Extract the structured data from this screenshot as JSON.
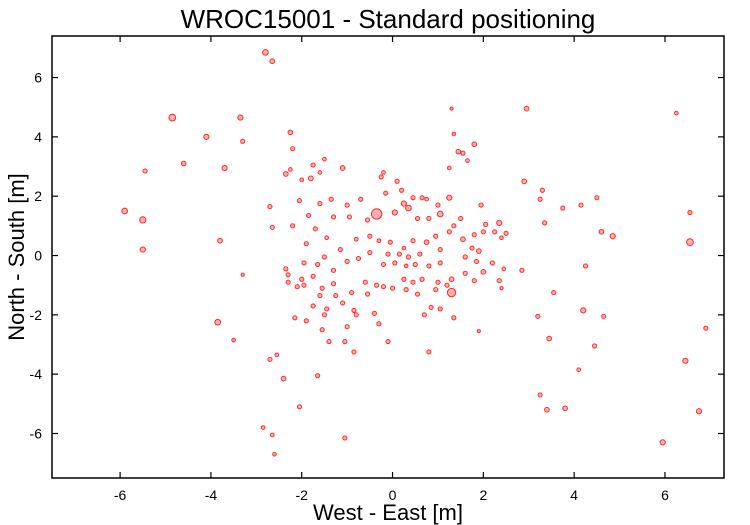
{
  "chart_data": {
    "type": "scatter",
    "title": "WROC15001 - Standard positioning",
    "xlabel": "West - East [m]",
    "ylabel": "North - South [m]",
    "xlim": [
      -7.5,
      7.3
    ],
    "ylim": [
      -7.5,
      7.4
    ],
    "xticks": [
      -6,
      -4,
      -2,
      0,
      2,
      4,
      6
    ],
    "yticks": [
      -6,
      -4,
      -2,
      0,
      2,
      4,
      6
    ],
    "grid": false,
    "marker_color": "#ff2a2a",
    "marker_fill": "#ffb0b0",
    "points": [
      {
        "x": -2.8,
        "y": 6.85,
        "s": 1.1
      },
      {
        "x": -2.65,
        "y": 6.55,
        "s": 0.9
      },
      {
        "x": -4.85,
        "y": 4.65,
        "s": 1.3
      },
      {
        "x": -3.35,
        "y": 4.65,
        "s": 1.0
      },
      {
        "x": -4.1,
        "y": 4.0,
        "s": 1.0
      },
      {
        "x": -3.3,
        "y": 3.85,
        "s": 0.8
      },
      {
        "x": -2.25,
        "y": 4.15,
        "s": 0.9
      },
      {
        "x": -2.2,
        "y": 3.6,
        "s": 0.8
      },
      {
        "x": -4.6,
        "y": 3.1,
        "s": 0.9
      },
      {
        "x": -3.7,
        "y": 2.95,
        "s": 1.0
      },
      {
        "x": -5.45,
        "y": 2.85,
        "s": 0.8
      },
      {
        "x": -5.9,
        "y": 1.5,
        "s": 1.1
      },
      {
        "x": -5.5,
        "y": 1.2,
        "s": 1.2
      },
      {
        "x": -5.5,
        "y": 0.2,
        "s": 1.0
      },
      {
        "x": -3.8,
        "y": 0.5,
        "s": 0.9
      },
      {
        "x": -3.3,
        "y": -0.65,
        "s": 0.6
      },
      {
        "x": -3.85,
        "y": -2.25,
        "s": 1.1
      },
      {
        "x": -3.5,
        "y": -2.85,
        "s": 0.7
      },
      {
        "x": -2.7,
        "y": -3.5,
        "s": 0.8
      },
      {
        "x": -2.55,
        "y": -3.35,
        "s": 0.7
      },
      {
        "x": -2.4,
        "y": -4.15,
        "s": 0.9
      },
      {
        "x": -2.05,
        "y": -5.1,
        "s": 0.8
      },
      {
        "x": -2.85,
        "y": -5.8,
        "s": 0.7
      },
      {
        "x": -2.65,
        "y": -6.05,
        "s": 0.7
      },
      {
        "x": -2.6,
        "y": -6.7,
        "s": 0.7
      },
      {
        "x": -1.05,
        "y": -6.15,
        "s": 0.8
      },
      {
        "x": -1.65,
        "y": -4.05,
        "s": 0.8
      },
      {
        "x": -2.35,
        "y": 2.75,
        "s": 0.9
      },
      {
        "x": -2.25,
        "y": 2.9,
        "s": 0.7
      },
      {
        "x": -1.75,
        "y": 3.05,
        "s": 0.8
      },
      {
        "x": -1.5,
        "y": 3.25,
        "s": 0.7
      },
      {
        "x": -1.6,
        "y": 2.8,
        "s": 0.7
      },
      {
        "x": -1.1,
        "y": 2.95,
        "s": 0.9
      },
      {
        "x": -1.8,
        "y": 2.6,
        "s": 0.9
      },
      {
        "x": -2.0,
        "y": 2.55,
        "s": 0.7
      },
      {
        "x": -2.7,
        "y": 1.65,
        "s": 0.8
      },
      {
        "x": -2.05,
        "y": 1.85,
        "s": 0.8
      },
      {
        "x": -1.6,
        "y": 1.75,
        "s": 0.8
      },
      {
        "x": -1.35,
        "y": 1.9,
        "s": 0.8
      },
      {
        "x": -1.0,
        "y": 1.7,
        "s": 0.8
      },
      {
        "x": -0.7,
        "y": 1.9,
        "s": 0.8
      },
      {
        "x": -1.85,
        "y": 1.35,
        "s": 0.8
      },
      {
        "x": -2.2,
        "y": 1.0,
        "s": 0.8
      },
      {
        "x": -1.7,
        "y": 0.9,
        "s": 0.8
      },
      {
        "x": -1.3,
        "y": 1.3,
        "s": 0.8
      },
      {
        "x": -0.95,
        "y": 1.3,
        "s": 0.8
      },
      {
        "x": -0.55,
        "y": 1.2,
        "s": 0.8
      },
      {
        "x": -2.65,
        "y": 0.95,
        "s": 0.8
      },
      {
        "x": -1.45,
        "y": 0.6,
        "s": 0.7
      },
      {
        "x": -1.15,
        "y": 0.2,
        "s": 0.8
      },
      {
        "x": -0.8,
        "y": 0.55,
        "s": 0.7
      },
      {
        "x": -0.5,
        "y": 0.65,
        "s": 0.8
      },
      {
        "x": -0.35,
        "y": 1.4,
        "s": 2.0
      },
      {
        "x": -0.25,
        "y": 2.65,
        "s": 0.8
      },
      {
        "x": -0.2,
        "y": 2.8,
        "s": 0.7
      },
      {
        "x": -0.15,
        "y": 2.1,
        "s": 0.8
      },
      {
        "x": 0.1,
        "y": 2.5,
        "s": 0.8
      },
      {
        "x": 0.2,
        "y": 2.2,
        "s": 0.8
      },
      {
        "x": 0.25,
        "y": 1.75,
        "s": 1.0
      },
      {
        "x": 0.05,
        "y": 1.45,
        "s": 1.0
      },
      {
        "x": 0.35,
        "y": 1.6,
        "s": 1.1
      },
      {
        "x": 0.45,
        "y": 1.95,
        "s": 0.8
      },
      {
        "x": 0.65,
        "y": 1.95,
        "s": 0.8
      },
      {
        "x": 0.55,
        "y": 1.25,
        "s": 0.8
      },
      {
        "x": 0.8,
        "y": 1.25,
        "s": 0.8
      },
      {
        "x": 0.75,
        "y": 1.9,
        "s": 0.7
      },
      {
        "x": 1.0,
        "y": 1.7,
        "s": 0.8
      },
      {
        "x": -0.3,
        "y": 0.5,
        "s": 0.7
      },
      {
        "x": -0.05,
        "y": 0.45,
        "s": 0.8
      },
      {
        "x": 0.25,
        "y": 0.25,
        "s": 0.7
      },
      {
        "x": 0.45,
        "y": 0.5,
        "s": 0.8
      },
      {
        "x": 0.75,
        "y": 0.45,
        "s": 0.9
      },
      {
        "x": 0.95,
        "y": 0.65,
        "s": 0.8
      },
      {
        "x": 0.6,
        "y": 0.05,
        "s": 0.8
      },
      {
        "x": 0.35,
        "y": -0.05,
        "s": 0.8
      },
      {
        "x": 0.15,
        "y": 0.05,
        "s": 0.8
      },
      {
        "x": -0.1,
        "y": 0.05,
        "s": 0.8
      },
      {
        "x": -0.5,
        "y": 0.1,
        "s": 0.8
      },
      {
        "x": -0.75,
        "y": -0.1,
        "s": 0.8
      },
      {
        "x": -1.0,
        "y": -0.2,
        "s": 0.8
      },
      {
        "x": -0.2,
        "y": -0.3,
        "s": 0.8
      },
      {
        "x": 0.05,
        "y": -0.25,
        "s": 0.8
      },
      {
        "x": 0.3,
        "y": -0.35,
        "s": 0.7
      },
      {
        "x": 0.5,
        "y": -0.3,
        "s": 0.8
      },
      {
        "x": 0.8,
        "y": -0.35,
        "s": 0.8
      },
      {
        "x": 1.05,
        "y": -0.25,
        "s": 0.8
      },
      {
        "x": 1.05,
        "y": 0.2,
        "s": 0.8
      },
      {
        "x": -1.9,
        "y": 0.4,
        "s": 0.8
      },
      {
        "x": -2.35,
        "y": -0.45,
        "s": 0.8
      },
      {
        "x": -2.3,
        "y": -0.65,
        "s": 0.8
      },
      {
        "x": -1.95,
        "y": -0.25,
        "s": 0.8
      },
      {
        "x": -1.65,
        "y": -0.3,
        "s": 0.8
      },
      {
        "x": -1.5,
        "y": -0.05,
        "s": 0.8
      },
      {
        "x": -1.3,
        "y": -0.5,
        "s": 0.8
      },
      {
        "x": -1.75,
        "y": -0.7,
        "s": 0.8
      },
      {
        "x": -2.0,
        "y": -0.8,
        "s": 0.8
      },
      {
        "x": -2.3,
        "y": -0.9,
        "s": 0.8
      },
      {
        "x": -2.1,
        "y": -1.05,
        "s": 0.8
      },
      {
        "x": -1.95,
        "y": -1.0,
        "s": 0.8
      },
      {
        "x": -1.55,
        "y": -1.1,
        "s": 0.8
      },
      {
        "x": -1.3,
        "y": -0.95,
        "s": 0.8
      },
      {
        "x": -1.6,
        "y": -1.35,
        "s": 0.8
      },
      {
        "x": -1.25,
        "y": -1.35,
        "s": 0.8
      },
      {
        "x": -1.75,
        "y": -1.7,
        "s": 0.8
      },
      {
        "x": -1.45,
        "y": -1.8,
        "s": 0.8
      },
      {
        "x": -1.1,
        "y": -1.6,
        "s": 0.8
      },
      {
        "x": -0.9,
        "y": -1.25,
        "s": 0.8
      },
      {
        "x": -0.6,
        "y": -0.9,
        "s": 0.8
      },
      {
        "x": -0.55,
        "y": -1.3,
        "s": 0.8
      },
      {
        "x": -0.35,
        "y": -1.0,
        "s": 0.8
      },
      {
        "x": -0.2,
        "y": -1.05,
        "s": 0.8
      },
      {
        "x": 0.0,
        "y": -1.1,
        "s": 0.8
      },
      {
        "x": 0.25,
        "y": -0.8,
        "s": 0.8
      },
      {
        "x": 0.45,
        "y": -0.9,
        "s": 0.8
      },
      {
        "x": 0.65,
        "y": -0.8,
        "s": 0.8
      },
      {
        "x": 0.3,
        "y": -1.15,
        "s": 0.8
      },
      {
        "x": 0.55,
        "y": -1.3,
        "s": 0.8
      },
      {
        "x": 0.95,
        "y": -1.15,
        "s": 0.8
      },
      {
        "x": 1.0,
        "y": -0.9,
        "s": 0.8
      },
      {
        "x": 1.2,
        "y": -1.0,
        "s": 0.8
      },
      {
        "x": 1.3,
        "y": -1.25,
        "s": 1.6
      },
      {
        "x": 0.85,
        "y": -1.75,
        "s": 0.8
      },
      {
        "x": 0.7,
        "y": -2.0,
        "s": 0.8
      },
      {
        "x": 1.05,
        "y": -1.8,
        "s": 0.8
      },
      {
        "x": -0.85,
        "y": -1.85,
        "s": 0.8
      },
      {
        "x": -0.8,
        "y": -2.0,
        "s": 0.8
      },
      {
        "x": -0.4,
        "y": -1.95,
        "s": 0.8
      },
      {
        "x": -0.3,
        "y": -2.3,
        "s": 0.8
      },
      {
        "x": -1.0,
        "y": -2.4,
        "s": 0.8
      },
      {
        "x": -1.55,
        "y": -2.5,
        "s": 0.8
      },
      {
        "x": -1.4,
        "y": -2.9,
        "s": 0.8
      },
      {
        "x": -1.05,
        "y": -2.9,
        "s": 0.8
      },
      {
        "x": -0.85,
        "y": -3.25,
        "s": 0.8
      },
      {
        "x": -0.1,
        "y": -2.9,
        "s": 0.8
      },
      {
        "x": 0.8,
        "y": -3.25,
        "s": 0.8
      },
      {
        "x": 1.35,
        "y": -2.1,
        "s": 0.8
      },
      {
        "x": -1.9,
        "y": -2.2,
        "s": 0.8
      },
      {
        "x": -2.15,
        "y": -2.1,
        "s": 0.8
      },
      {
        "x": -1.5,
        "y": -2.0,
        "s": 0.8
      },
      {
        "x": 1.3,
        "y": 4.95,
        "s": 0.6
      },
      {
        "x": 1.35,
        "y": 4.1,
        "s": 0.7
      },
      {
        "x": 1.45,
        "y": 3.5,
        "s": 0.9
      },
      {
        "x": 1.55,
        "y": 3.45,
        "s": 0.8
      },
      {
        "x": 1.8,
        "y": 3.75,
        "s": 0.9
      },
      {
        "x": 1.65,
        "y": 3.2,
        "s": 0.7
      },
      {
        "x": 1.25,
        "y": 2.95,
        "s": 0.7
      },
      {
        "x": 1.25,
        "y": 1.95,
        "s": 1.0
      },
      {
        "x": 1.5,
        "y": 1.25,
        "s": 0.8
      },
      {
        "x": 1.35,
        "y": 1.0,
        "s": 0.8
      },
      {
        "x": 1.05,
        "y": 1.4,
        "s": 1.1
      },
      {
        "x": 1.25,
        "y": 0.8,
        "s": 0.8
      },
      {
        "x": 1.55,
        "y": 0.55,
        "s": 0.9
      },
      {
        "x": 1.8,
        "y": 0.7,
        "s": 0.8
      },
      {
        "x": 2.0,
        "y": 0.8,
        "s": 0.8
      },
      {
        "x": 1.95,
        "y": 1.7,
        "s": 0.8
      },
      {
        "x": 2.05,
        "y": 1.05,
        "s": 0.8
      },
      {
        "x": 2.25,
        "y": 0.8,
        "s": 0.8
      },
      {
        "x": 2.35,
        "y": 1.1,
        "s": 1.0
      },
      {
        "x": 2.5,
        "y": 0.75,
        "s": 0.8
      },
      {
        "x": 2.4,
        "y": 0.6,
        "s": 0.7
      },
      {
        "x": 1.75,
        "y": 0.25,
        "s": 0.8
      },
      {
        "x": 1.9,
        "y": 0.15,
        "s": 0.9
      },
      {
        "x": 1.6,
        "y": -0.05,
        "s": 0.8
      },
      {
        "x": 1.85,
        "y": -0.2,
        "s": 0.8
      },
      {
        "x": 2.0,
        "y": -0.55,
        "s": 0.9
      },
      {
        "x": 2.2,
        "y": -0.25,
        "s": 0.8
      },
      {
        "x": 2.45,
        "y": -0.45,
        "s": 0.7
      },
      {
        "x": 2.85,
        "y": -0.5,
        "s": 0.8
      },
      {
        "x": 2.35,
        "y": -0.85,
        "s": 0.8
      },
      {
        "x": 1.6,
        "y": -0.6,
        "s": 0.8
      },
      {
        "x": 1.8,
        "y": -0.85,
        "s": 0.8
      },
      {
        "x": 1.3,
        "y": -0.8,
        "s": 0.9
      },
      {
        "x": 2.4,
        "y": -1.1,
        "s": 0.6
      },
      {
        "x": 1.9,
        "y": -2.55,
        "s": 0.6
      },
      {
        "x": 2.95,
        "y": 4.95,
        "s": 0.9
      },
      {
        "x": 2.9,
        "y": 2.5,
        "s": 0.9
      },
      {
        "x": 3.3,
        "y": 2.2,
        "s": 0.8
      },
      {
        "x": 3.25,
        "y": 1.9,
        "s": 0.8
      },
      {
        "x": 3.35,
        "y": 1.1,
        "s": 0.8
      },
      {
        "x": 3.75,
        "y": 1.6,
        "s": 0.8
      },
      {
        "x": 4.15,
        "y": 1.7,
        "s": 0.8
      },
      {
        "x": 4.5,
        "y": 1.95,
        "s": 0.8
      },
      {
        "x": 4.6,
        "y": 0.8,
        "s": 0.9
      },
      {
        "x": 4.85,
        "y": 0.65,
        "s": 1.0
      },
      {
        "x": 4.25,
        "y": -0.35,
        "s": 0.8
      },
      {
        "x": 3.55,
        "y": -1.25,
        "s": 0.8
      },
      {
        "x": 3.2,
        "y": -2.05,
        "s": 0.8
      },
      {
        "x": 4.2,
        "y": -1.85,
        "s": 1.0
      },
      {
        "x": 4.65,
        "y": -2.05,
        "s": 0.8
      },
      {
        "x": 3.45,
        "y": -2.8,
        "s": 0.9
      },
      {
        "x": 4.45,
        "y": -3.05,
        "s": 0.8
      },
      {
        "x": 4.1,
        "y": -3.85,
        "s": 0.7
      },
      {
        "x": 3.25,
        "y": -4.7,
        "s": 0.8
      },
      {
        "x": 3.4,
        "y": -5.2,
        "s": 0.9
      },
      {
        "x": 3.8,
        "y": -5.15,
        "s": 0.9
      },
      {
        "x": 6.25,
        "y": 4.8,
        "s": 0.7
      },
      {
        "x": 6.55,
        "y": 1.45,
        "s": 0.8
      },
      {
        "x": 6.55,
        "y": 0.45,
        "s": 1.3
      },
      {
        "x": 6.9,
        "y": -2.45,
        "s": 0.8
      },
      {
        "x": 6.45,
        "y": -3.55,
        "s": 1.0
      },
      {
        "x": 6.75,
        "y": -5.25,
        "s": 1.0
      },
      {
        "x": 5.95,
        "y": -6.3,
        "s": 1.0
      }
    ]
  }
}
